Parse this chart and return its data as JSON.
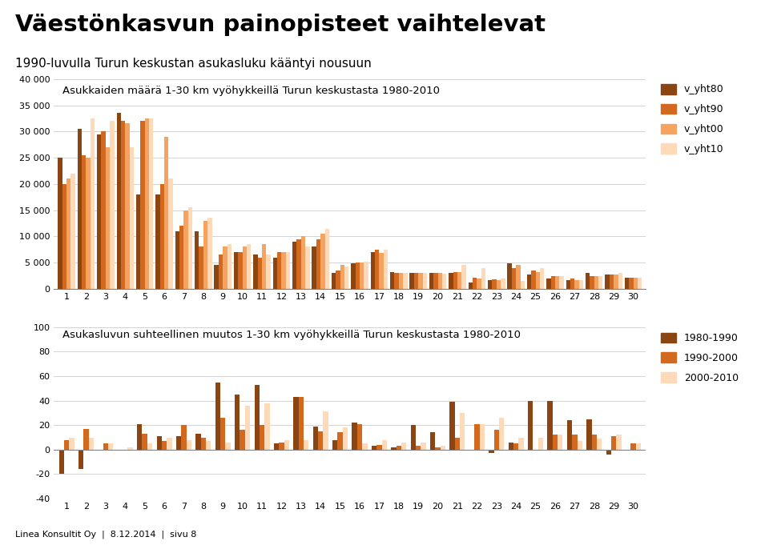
{
  "title": "Väestönkasvun painopisteet vaihtelevat",
  "subtitle": "1990-luvulla Turun keskustan asukasluku kääntyi nousuun",
  "chart1_title": "Asukkaiden määrä 1-30 km vyöhykkeillä Turun keskustasta 1980-2010",
  "chart2_title": "Asukasluvun suhteellinen muutos 1-30 km vyöhykkeillä Turun keskustasta 1980-2010",
  "footer": "Linea Konsultit Oy  |  8.12.2014  |  sivu 8",
  "categories": [
    1,
    2,
    3,
    4,
    5,
    6,
    7,
    8,
    9,
    10,
    11,
    12,
    13,
    14,
    15,
    16,
    17,
    18,
    19,
    20,
    21,
    22,
    23,
    24,
    25,
    26,
    27,
    28,
    29,
    30
  ],
  "v_yht80": [
    25000,
    30500,
    29500,
    33500,
    18000,
    18000,
    11000,
    11000,
    4500,
    7000,
    6500,
    6000,
    9000,
    8000,
    3000,
    4800,
    7000,
    3200,
    3000,
    3000,
    3000,
    1200,
    1600,
    4800,
    2800,
    2000,
    1700,
    3000,
    2800,
    2200
  ],
  "v_yht90": [
    20000,
    25500,
    30000,
    32000,
    32000,
    20000,
    12000,
    8000,
    6500,
    7000,
    6000,
    7000,
    9500,
    9500,
    3500,
    5000,
    7500,
    3100,
    3000,
    3000,
    3200,
    2100,
    1800,
    4000,
    3500,
    2500,
    2000,
    2500,
    2800,
    2200
  ],
  "v_yht00": [
    21000,
    25000,
    27000,
    31500,
    32500,
    29000,
    15000,
    13000,
    8000,
    8000,
    8500,
    7000,
    10000,
    10500,
    4500,
    5000,
    6800,
    3000,
    3000,
    3000,
    3200,
    2000,
    1700,
    4500,
    3200,
    2500,
    1600,
    2500,
    2700,
    2100
  ],
  "v_yht10": [
    22000,
    32500,
    32000,
    27000,
    32500,
    21000,
    15500,
    13500,
    8500,
    8500,
    6500,
    7000,
    8000,
    11500,
    4200,
    5200,
    7500,
    3000,
    3000,
    2900,
    4500,
    4000,
    2000,
    1500,
    4000,
    2500,
    1700,
    2500,
    3000,
    2100
  ],
  "pct_1980_1990": [
    -20,
    -16,
    0,
    -1,
    21,
    11,
    11,
    13,
    55,
    45,
    53,
    5,
    43,
    19,
    8,
    22,
    3,
    2,
    20,
    14,
    39,
    0,
    -3,
    6,
    40,
    40,
    24,
    25,
    -4,
    0
  ],
  "pct_1990_2000": [
    8,
    17,
    5,
    0,
    13,
    7,
    20,
    10,
    26,
    16,
    20,
    6,
    43,
    15,
    14,
    21,
    4,
    3,
    3,
    2,
    10,
    21,
    16,
    5,
    0,
    12,
    12,
    12,
    11,
    5
  ],
  "pct_2000_2010": [
    10,
    10,
    5,
    2,
    5,
    10,
    8,
    7,
    6,
    36,
    38,
    8,
    8,
    31,
    18,
    5,
    8,
    6,
    6,
    3,
    30,
    21,
    26,
    10,
    10,
    12,
    7,
    9,
    12,
    5
  ],
  "color_80": "#8B4513",
  "color_90": "#D2691E",
  "color_00": "#F4A460",
  "color_10": "#FFDAB9",
  "color_pct_80_90": "#8B4513",
  "color_pct_90_00": "#D2691E",
  "color_pct_00_10": "#FFDAB9",
  "chart1_ylim": [
    0,
    40000
  ],
  "chart1_yticks": [
    0,
    5000,
    10000,
    15000,
    20000,
    25000,
    30000,
    35000,
    40000
  ],
  "chart2_ylim": [
    -40,
    100
  ],
  "chart2_yticks": [
    -40,
    -20,
    0,
    20,
    40,
    60,
    80,
    100
  ]
}
